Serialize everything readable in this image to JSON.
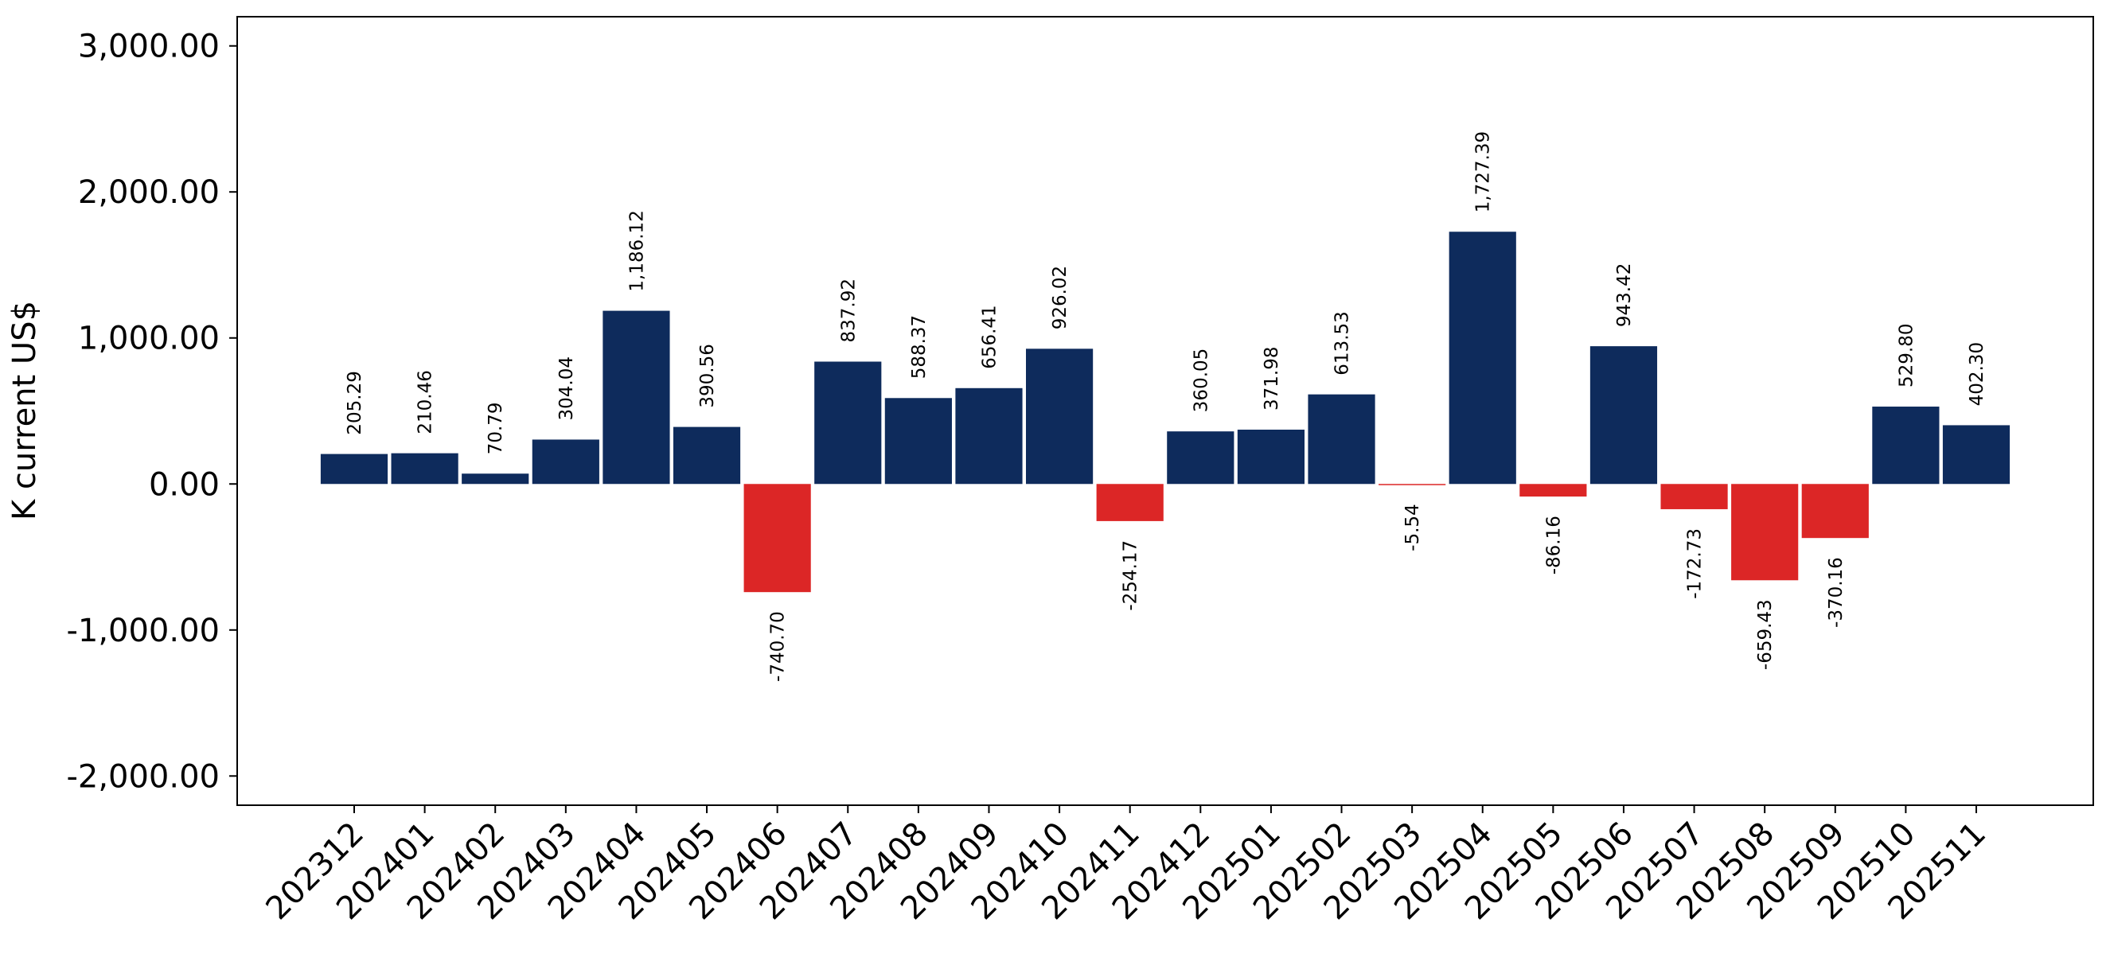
{
  "chart_data": {
    "type": "bar",
    "title": "",
    "xlabel": "",
    "ylabel": "K current US$",
    "categories": [
      "202312",
      "202401",
      "202402",
      "202403",
      "202404",
      "202405",
      "202406",
      "202407",
      "202408",
      "202409",
      "202410",
      "202411",
      "202412",
      "202501",
      "202502",
      "202503",
      "202504",
      "202505",
      "202506",
      "202507",
      "202508",
      "202509",
      "202510",
      "202511"
    ],
    "values": [
      205.29,
      210.46,
      70.79,
      304.04,
      1186.12,
      390.56,
      -740.7,
      837.92,
      588.37,
      656.41,
      926.02,
      -254.17,
      360.05,
      371.98,
      613.53,
      -5.54,
      1727.39,
      -86.16,
      943.42,
      -172.73,
      -659.43,
      -370.16,
      529.8,
      402.3
    ],
    "value_labels": [
      "205.29",
      "210.46",
      "70.79",
      "304.04",
      "1,186.12",
      "390.56",
      "-740.70",
      "837.92",
      "588.37",
      "656.41",
      "926.02",
      "-254.17",
      "360.05",
      "371.98",
      "613.53",
      "-5.54",
      "1,727.39",
      "-86.16",
      "943.42",
      "-172.73",
      "-659.43",
      "-370.16",
      "529.80",
      "402.30"
    ],
    "yticks": [
      3000,
      2000,
      1000,
      0,
      -1000,
      -2000
    ],
    "ytick_labels": [
      "3,000.00",
      "2,000.00",
      "1,000.00",
      "0.00",
      "-1,000.00",
      "-2,000.00"
    ],
    "ylim": [
      -2200,
      3200
    ],
    "grid": false,
    "legend": "none",
    "colors": {
      "positive": "#0e2b5c",
      "negative": "#dc2626"
    }
  }
}
